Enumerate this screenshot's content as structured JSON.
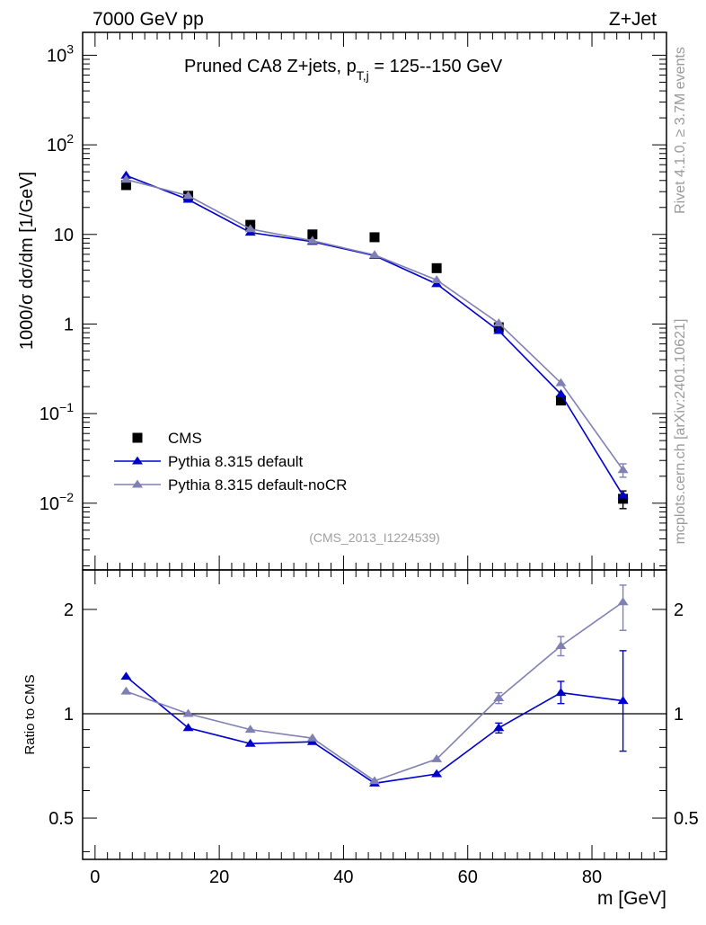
{
  "header": {
    "energy_label": "7000 GeV pp",
    "process_label": "Z+Jet"
  },
  "side_labels": {
    "rivet": "Rivet 4.1.0, ≥ 3.7M events",
    "mcplots": "mcplots.cern.ch [arXiv:2401.10621]"
  },
  "chart_data": [
    {
      "type": "scatter",
      "title_main": "Pruned CA8 Z+jets, p",
      "title_sub": "T,j",
      "title_tail": " = 125--150 GeV",
      "analysis_label": "(CMS_2013_I1224539)",
      "ylabel": "1000/σ  dσ/dm [1/GeV]",
      "yscale": "log",
      "ylim": [
        0.0018,
        1800
      ],
      "xlim": [
        -2,
        92
      ],
      "ytick_labels": [
        "10^-2",
        "10^-1",
        "1",
        "10",
        "10^2",
        "10^3"
      ],
      "x": [
        5,
        15,
        25,
        35,
        45,
        55,
        65,
        75,
        85
      ],
      "series": [
        {
          "name": "CMS",
          "color": "#000000",
          "marker": "square",
          "values": [
            35.5,
            27.0,
            12.8,
            10.0,
            9.3,
            4.2,
            0.92,
            0.14,
            0.0112
          ],
          "err": [
            0,
            0,
            0,
            0,
            0,
            0,
            0,
            0,
            0.0025
          ]
        },
        {
          "name": "Pythia 8.315 default",
          "color": "#0000cc",
          "marker": "triangle",
          "values": [
            45.5,
            24.5,
            10.5,
            8.3,
            5.8,
            2.8,
            0.84,
            0.165,
            0.0122
          ],
          "err": [
            0,
            0,
            0,
            0,
            0,
            0,
            0,
            0,
            0
          ]
        },
        {
          "name": "Pythia 8.315 default-noCR",
          "color": "#8080b3",
          "marker": "triangle",
          "values": [
            41.0,
            27.0,
            11.5,
            8.5,
            5.9,
            3.1,
            1.02,
            0.22,
            0.0235
          ],
          "err": [
            0,
            0,
            0,
            0,
            0,
            0,
            0,
            0,
            0.004
          ]
        }
      ]
    },
    {
      "type": "line",
      "ylabel": "Ratio to CMS",
      "xlabel": "m [GeV]",
      "yscale": "log",
      "ylim": [
        0.38,
        2.6
      ],
      "xlim": [
        -2,
        92
      ],
      "x_ticks": [
        0,
        20,
        40,
        60,
        80
      ],
      "x_tick_labels": [
        "0",
        "20",
        "40",
        "60",
        "80"
      ],
      "y_ticks": [
        0.5,
        1,
        2
      ],
      "y_tick_labels": [
        "0.5",
        "1",
        "2"
      ],
      "x": [
        5,
        15,
        25,
        35,
        45,
        55,
        65,
        75,
        85
      ],
      "reference": 1,
      "series": [
        {
          "name": "Pythia 8.315 default",
          "color": "#0000cc",
          "values": [
            1.28,
            0.91,
            0.82,
            0.83,
            0.63,
            0.67,
            0.91,
            1.15,
            1.09
          ],
          "err_up": [
            0,
            0,
            0,
            0,
            0,
            0,
            0.03,
            0.09,
            0.43
          ],
          "err_dn": [
            0,
            0,
            0,
            0,
            0,
            0,
            0.03,
            0.08,
            0.31
          ]
        },
        {
          "name": "Pythia 8.315 default-noCR",
          "color": "#8080b3",
          "values": [
            1.16,
            1.0,
            0.9,
            0.85,
            0.64,
            0.74,
            1.11,
            1.57,
            2.1
          ],
          "err_up": [
            0,
            0,
            0,
            0,
            0,
            0,
            0.04,
            0.1,
            0.25
          ],
          "err_dn": [
            0,
            0,
            0,
            0,
            0,
            0,
            0.04,
            0.1,
            0.36
          ]
        }
      ]
    }
  ]
}
